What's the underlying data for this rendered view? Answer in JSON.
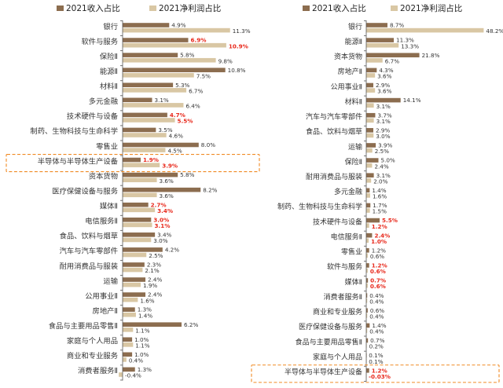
{
  "colors": {
    "revenue": "#8C6D4F",
    "profit": "#D9C7A4",
    "axis": "#555555",
    "label": "#333333",
    "highlight_value": "#E8291C",
    "highlight_box": "#F08A24"
  },
  "chart_data": [
    {
      "type": "bar",
      "orientation": "horizontal",
      "legend": {
        "position": "top",
        "entries": [
          "2021收入占比",
          "2021净利润占比"
        ]
      },
      "series_names": [
        "2021收入占比",
        "2021净利润占比"
      ],
      "categories": [
        "银行",
        "软件与服务",
        "保险Ⅱ",
        "能源Ⅱ",
        "材料Ⅱ",
        "多元金融",
        "技术硬件与设备",
        "制药、生物科技与生命科学",
        "零售业",
        "半导体与半导体生产设备",
        "资本货物",
        "医疗保健设备与服务",
        "媒体Ⅱ",
        "电信服务Ⅱ",
        "食品、饮料与烟草",
        "汽车与汽车零部件",
        "耐用消费品与服装",
        "运输",
        "公用事业Ⅱ",
        "房地产Ⅱ",
        "食品与主要用品零售Ⅱ",
        "家庭与个人用品",
        "商业和专业服务",
        "消费者服务Ⅱ"
      ],
      "revenue": [
        4.9,
        6.9,
        5.8,
        10.8,
        5.3,
        3.1,
        4.7,
        3.5,
        8.0,
        1.9,
        5.8,
        8.2,
        2.7,
        3.0,
        3.4,
        4.2,
        2.3,
        2.4,
        2.4,
        1.3,
        6.2,
        1.0,
        1.0,
        1.3
      ],
      "profit": [
        11.3,
        10.9,
        9.8,
        7.5,
        6.7,
        6.4,
        5.5,
        4.6,
        4.5,
        3.9,
        3.6,
        3.6,
        3.4,
        3.1,
        3.0,
        2.5,
        2.1,
        1.9,
        1.6,
        1.4,
        1.1,
        1.1,
        0.4,
        -0.4
      ],
      "revenue_labels": [
        "4.9%",
        "6.9%",
        "5.8%",
        "10.8%",
        "5.3%",
        "3.1%",
        "4.7%",
        "3.5%",
        "8.0%",
        "1.9%",
        "5.8%",
        "8.2%",
        "2.7%",
        "3.0%",
        "3.4%",
        "4.2%",
        "2.3%",
        "2.4%",
        "2.4%",
        "1.3%",
        "6.2%",
        "1.0%",
        "1.0%",
        "1.3%"
      ],
      "profit_labels": [
        "11.3%",
        "10.9%",
        "9.8%",
        "7.5%",
        "6.7%",
        "6.4%",
        "5.5%",
        "4.6%",
        "4.5%",
        "3.9%",
        "3.6%",
        "3.6%",
        "3.4%",
        "3.1%",
        "3.0%",
        "2.5%",
        "2.1%",
        "1.9%",
        "1.6%",
        "1.4%",
        "1.1%",
        "1.1%",
        "0.4%",
        "-0.4%"
      ],
      "highlighted_values": [
        "软件与服务",
        "技术硬件与设备",
        "半导体与半导体生产设备",
        "媒体Ⅱ",
        "电信服务Ⅱ"
      ],
      "highlight_box": "半导体与半导体生产设备"
    },
    {
      "type": "bar",
      "orientation": "horizontal",
      "legend": {
        "position": "top",
        "entries": [
          "2021收入占比",
          "2021净利润占比"
        ]
      },
      "series_names": [
        "2021收入占比",
        "2021净利润占比"
      ],
      "categories": [
        "银行",
        "能源Ⅱ",
        "资本货物",
        "房地产Ⅱ",
        "公用事业Ⅱ",
        "材料Ⅱ",
        "汽车与汽车零部件",
        "食品、饮料与烟草",
        "运输",
        "保险Ⅱ",
        "耐用消费品与服装",
        "多元金融",
        "制药、生物科技与生命科学",
        "技术硬件与设备",
        "电信服务Ⅱ",
        "零售业",
        "软件与服务",
        "媒体Ⅱ",
        "消费者服务Ⅱ",
        "商业和专业服务",
        "医疗保健设备与服务",
        "食品与主要用品零售Ⅱ",
        "家庭与个人用品",
        "半导体与半导体生产设备"
      ],
      "revenue": [
        8.7,
        11.3,
        21.8,
        4.3,
        2.9,
        14.1,
        3.7,
        2.9,
        3.9,
        5.0,
        3.1,
        1.4,
        1.7,
        5.5,
        2.4,
        1.2,
        1.2,
        0.7,
        0.4,
        0.6,
        1.4,
        0.7,
        0.1,
        1.2
      ],
      "profit": [
        48.2,
        13.3,
        6.7,
        3.6,
        3.6,
        3.1,
        3.1,
        3.0,
        2.5,
        2.4,
        2.0,
        1.6,
        1.5,
        1.2,
        1.0,
        0.6,
        0.6,
        0.6,
        0.4,
        0.4,
        0.4,
        0.2,
        0.1,
        -0.03
      ],
      "revenue_labels": [
        "8.7%",
        "11.3%",
        "21.8%",
        "4.3%",
        "2.9%",
        "14.1%",
        "3.7%",
        "2.9%",
        "3.9%",
        "5.0%",
        "3.1%",
        "1.4%",
        "1.7%",
        "5.5%",
        "2.4%",
        "1.2%",
        "1.2%",
        "0.7%",
        "0.4%",
        "0.6%",
        "1.4%",
        "0.7%",
        "0.1%",
        "1.2%"
      ],
      "profit_labels": [
        "48.2%",
        "13.3%",
        "6.7%",
        "3.6%",
        "3.6%",
        "3.1%",
        "3.1%",
        "3.0%",
        "2.5%",
        "2.4%",
        "2.0%",
        "1.6%",
        "1.5%",
        "1.2%",
        "1.0%",
        "0.6%",
        "0.6%",
        "0.6%",
        "0.4%",
        "0.4%",
        "0.4%",
        "0.2%",
        "0.1%",
        "-0.03%"
      ],
      "highlighted_values": [
        "技术硬件与设备",
        "电信服务Ⅱ",
        "软件与服务",
        "媒体Ⅱ",
        "半导体与半导体生产设备"
      ],
      "highlight_box": "半导体与半导体生产设备"
    }
  ]
}
